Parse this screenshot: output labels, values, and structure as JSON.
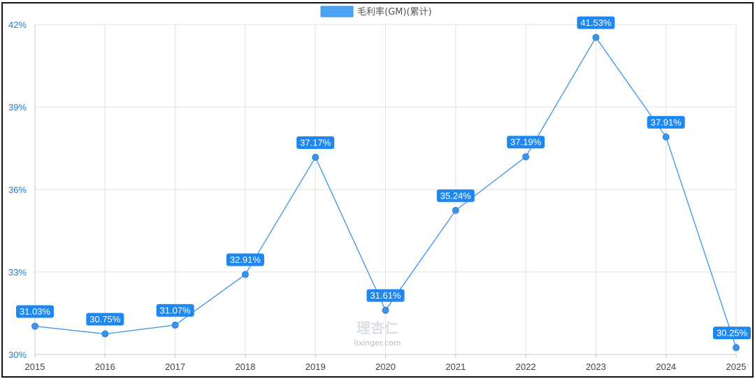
{
  "chart_data": {
    "type": "line",
    "series": [
      {
        "name": "毛利率(GM)(累计)",
        "color": "#3a94ea",
        "x": [
          "2015",
          "2016",
          "2017",
          "2018",
          "2019",
          "2020",
          "2021",
          "2022",
          "2023",
          "2024",
          "2025"
        ],
        "values": [
          31.03,
          30.75,
          31.07,
          32.91,
          37.17,
          31.61,
          35.24,
          37.19,
          41.53,
          37.91,
          30.25
        ],
        "labels": [
          "31.03%",
          "30.75%",
          "31.07%",
          "32.91%",
          "37.17%",
          "31.61%",
          "35.24%",
          "37.19%",
          "41.53%",
          "37.91%",
          "30.25%"
        ]
      }
    ],
    "y_ticks": [
      30,
      33,
      36,
      39,
      42
    ],
    "y_tick_labels": [
      "30%",
      "33%",
      "36%",
      "39%",
      "42%"
    ],
    "ylim": [
      30,
      42
    ],
    "grid": true,
    "legend_position": "top-center"
  },
  "watermark": {
    "logo_text": "理杏仁",
    "site": "lixinger.com"
  },
  "colors": {
    "line": "#3a94ea",
    "point": "#3a94ea",
    "label_bg": "#1e88f0",
    "y_tick_text": "#1a7fd6",
    "x_tick_text": "#444444",
    "grid": "#e2e2e2",
    "axis": "#c8c8c8"
  }
}
